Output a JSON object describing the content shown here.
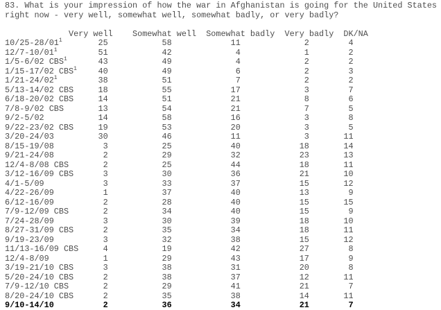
{
  "question": {
    "number": "83.",
    "line1": "83. What is your impression of how the war in Afghanistan is going for the United States",
    "line2": "right now - very well, somewhat well, somewhat badly, or very badly?"
  },
  "table": {
    "columns": [
      "Very well",
      "Somewhat well",
      "Somewhat badly",
      "Very badly",
      "DK/NA"
    ],
    "column_keys": [
      "very-well",
      "somewhat-well",
      "somewhat-badly",
      "very-badly",
      "dk-na"
    ],
    "footnote_marker": "1",
    "rows": [
      {
        "date": "10/25-28/01",
        "sup": "1",
        "values": [
          25,
          58,
          11,
          2,
          4
        ]
      },
      {
        "date": "12/7-10/01",
        "sup": "1",
        "values": [
          51,
          42,
          4,
          1,
          2
        ]
      },
      {
        "date": "1/5-6/02 CBS",
        "sup": "1",
        "values": [
          43,
          49,
          4,
          2,
          2
        ]
      },
      {
        "date": "1/15-17/02 CBS",
        "sup": "1",
        "values": [
          40,
          49,
          6,
          2,
          3
        ]
      },
      {
        "date": "1/21-24/02",
        "sup": "1",
        "values": [
          38,
          51,
          7,
          2,
          2
        ]
      },
      {
        "date": "5/13-14/02 CBS",
        "values": [
          18,
          55,
          17,
          3,
          7
        ]
      },
      {
        "date": "6/18-20/02 CBS",
        "values": [
          14,
          51,
          21,
          8,
          6
        ]
      },
      {
        "date": "7/8-9/02 CBS",
        "values": [
          13,
          54,
          21,
          7,
          5
        ]
      },
      {
        "date": "9/2-5/02",
        "values": [
          14,
          58,
          16,
          3,
          8
        ]
      },
      {
        "date": "9/22-23/02 CBS",
        "values": [
          19,
          53,
          20,
          3,
          5
        ]
      },
      {
        "date": "3/20-24/03",
        "values": [
          30,
          46,
          11,
          3,
          11
        ]
      },
      {
        "date": "8/15-19/08",
        "values": [
          3,
          25,
          40,
          18,
          14
        ]
      },
      {
        "date": "9/21-24/08",
        "values": [
          2,
          29,
          32,
          23,
          13
        ]
      },
      {
        "date": "12/4-8/08 CBS",
        "values": [
          2,
          25,
          44,
          18,
          11
        ]
      },
      {
        "date": "3/12-16/09 CBS",
        "values": [
          3,
          30,
          36,
          21,
          10
        ]
      },
      {
        "date": "4/1-5/09",
        "values": [
          3,
          33,
          37,
          15,
          12
        ]
      },
      {
        "date": "4/22-26/09",
        "values": [
          1,
          37,
          40,
          13,
          9
        ]
      },
      {
        "date": "6/12-16/09",
        "values": [
          2,
          28,
          40,
          15,
          15
        ]
      },
      {
        "date": "7/9-12/09 CBS",
        "values": [
          2,
          34,
          40,
          15,
          9
        ]
      },
      {
        "date": "7/24-28/09",
        "values": [
          3,
          30,
          39,
          18,
          10
        ]
      },
      {
        "date": "8/27-31/09 CBS",
        "values": [
          2,
          35,
          34,
          18,
          11
        ]
      },
      {
        "date": "9/19-23/09",
        "values": [
          3,
          32,
          38,
          15,
          12
        ]
      },
      {
        "date": "11/13-16/09 CBS",
        "values": [
          4,
          19,
          42,
          27,
          8
        ]
      },
      {
        "date": "12/4-8/09",
        "values": [
          1,
          29,
          43,
          17,
          9
        ]
      },
      {
        "date": "3/19-21/10 CBS",
        "values": [
          3,
          38,
          31,
          20,
          8
        ]
      },
      {
        "date": "5/20-24/10 CBS",
        "values": [
          2,
          38,
          37,
          12,
          11
        ]
      },
      {
        "date": "7/9-12/10 CBS",
        "values": [
          2,
          29,
          41,
          21,
          7
        ]
      },
      {
        "date": "8/20-24/10 CBS",
        "values": [
          2,
          35,
          38,
          14,
          11
        ]
      },
      {
        "date": "9/10-14/10",
        "values": [
          2,
          36,
          34,
          21,
          7
        ],
        "bold": true
      }
    ]
  },
  "colors": {
    "background": "#ffffff",
    "text": "#4d4d4d",
    "bold_text": "#000000"
  }
}
